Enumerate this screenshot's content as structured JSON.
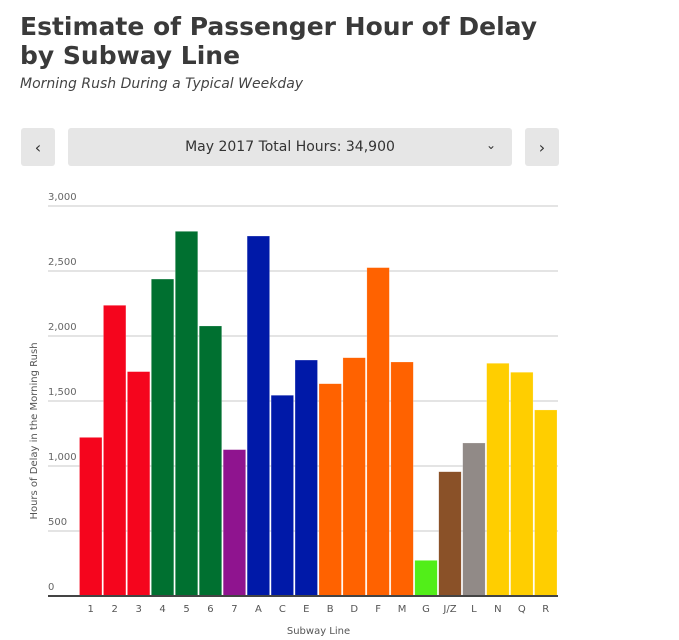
{
  "header": {
    "title": "Estimate of Passenger Hour of Delay by Subway Line",
    "subtitle": "Morning Rush During a Typical Weekday"
  },
  "controls": {
    "prev_icon": "chevron-left-icon",
    "next_icon": "chevron-right-icon",
    "prev_glyph": "‹",
    "next_glyph": "›",
    "selected": "May 2017 Total Hours: 34,900",
    "dropdown_icon": "chevron-down-icon",
    "dropdown_glyph": "⌄"
  },
  "chart_data": {
    "type": "bar",
    "title": "",
    "xlabel": "Subway Line",
    "ylabel": "Hours of Delay in the Morning Rush",
    "ylim": [
      0,
      3000
    ],
    "yticks": [
      0,
      500,
      1000,
      1500,
      2000,
      2500,
      3000
    ],
    "ytick_labels": [
      "0",
      "500",
      "1,000",
      "1,500",
      "2,000",
      "2,500",
      "3,000"
    ],
    "grid": true,
    "categories": [
      "1",
      "2",
      "3",
      "4",
      "5",
      "6",
      "7",
      "A",
      "C",
      "E",
      "B",
      "D",
      "F",
      "M",
      "G",
      "J/Z",
      "L",
      "N",
      "Q",
      "R"
    ],
    "values": [
      1220,
      2236,
      1726,
      2438,
      2805,
      2077,
      1126,
      2769,
      1544,
      1815,
      1633,
      1833,
      2526,
      1800,
      274,
      956,
      1177,
      1790,
      1721,
      1431
    ],
    "colors": [
      "#f5051d",
      "#f5051d",
      "#f5051d",
      "#007030",
      "#007030",
      "#007030",
      "#8f148f",
      "#0019a8",
      "#0019a8",
      "#0019a8",
      "#ff6200",
      "#ff6200",
      "#ff6200",
      "#ff6200",
      "#52ee19",
      "#8a5128",
      "#918a87",
      "#ffce00",
      "#ffce00",
      "#ffce00"
    ]
  }
}
